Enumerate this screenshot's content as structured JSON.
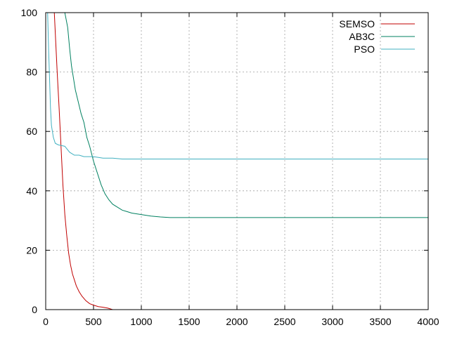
{
  "chart_data": {
    "type": "line",
    "title": "",
    "xlabel": "",
    "ylabel": "",
    "xlim": [
      0,
      4000
    ],
    "ylim": [
      0,
      100
    ],
    "xticks": [
      0,
      500,
      1000,
      1500,
      2000,
      2500,
      3000,
      3500,
      4000
    ],
    "yticks": [
      0,
      20,
      40,
      60,
      80,
      100
    ],
    "grid": true,
    "legend_position": "top-right",
    "series": [
      {
        "name": "SEMSO",
        "color": "#c00000",
        "points": [
          [
            90,
            100
          ],
          [
            105,
            90
          ],
          [
            120,
            80
          ],
          [
            140,
            68
          ],
          [
            160,
            55
          ],
          [
            180,
            42
          ],
          [
            200,
            32
          ],
          [
            220,
            25
          ],
          [
            240,
            19
          ],
          [
            260,
            15
          ],
          [
            280,
            12
          ],
          [
            300,
            10
          ],
          [
            320,
            8
          ],
          [
            350,
            6
          ],
          [
            380,
            4.5
          ],
          [
            420,
            3
          ],
          [
            460,
            2
          ],
          [
            500,
            1.5
          ],
          [
            550,
            1
          ],
          [
            600,
            0.8
          ],
          [
            650,
            0.5
          ],
          [
            700,
            0
          ]
        ]
      },
      {
        "name": "AB3C",
        "color": "#008060",
        "points": [
          [
            200,
            100
          ],
          [
            230,
            95
          ],
          [
            250,
            88
          ],
          [
            270,
            82
          ],
          [
            290,
            78
          ],
          [
            310,
            74
          ],
          [
            340,
            70
          ],
          [
            370,
            66
          ],
          [
            400,
            63
          ],
          [
            430,
            58
          ],
          [
            460,
            55
          ],
          [
            500,
            50
          ],
          [
            540,
            46
          ],
          [
            580,
            42
          ],
          [
            620,
            39
          ],
          [
            660,
            37
          ],
          [
            700,
            35.5
          ],
          [
            750,
            34.5
          ],
          [
            800,
            33.5
          ],
          [
            850,
            33
          ],
          [
            900,
            32.5
          ],
          [
            1000,
            32
          ],
          [
            1100,
            31.5
          ],
          [
            1200,
            31.2
          ],
          [
            1300,
            31
          ],
          [
            1500,
            31
          ],
          [
            2000,
            31
          ],
          [
            3000,
            31
          ],
          [
            4000,
            31
          ]
        ]
      },
      {
        "name": "PSO",
        "color": "#40b0c0",
        "points": [
          [
            20,
            100
          ],
          [
            30,
            88
          ],
          [
            40,
            78
          ],
          [
            50,
            68
          ],
          [
            60,
            62
          ],
          [
            70,
            60
          ],
          [
            80,
            58
          ],
          [
            100,
            56
          ],
          [
            130,
            55.5
          ],
          [
            200,
            55
          ],
          [
            250,
            53
          ],
          [
            300,
            52
          ],
          [
            350,
            52
          ],
          [
            400,
            51.5
          ],
          [
            500,
            51.5
          ],
          [
            600,
            51
          ],
          [
            700,
            51
          ],
          [
            800,
            50.7
          ],
          [
            1000,
            50.7
          ],
          [
            2000,
            50.7
          ],
          [
            3000,
            50.7
          ],
          [
            4000,
            50.7
          ]
        ]
      }
    ]
  }
}
